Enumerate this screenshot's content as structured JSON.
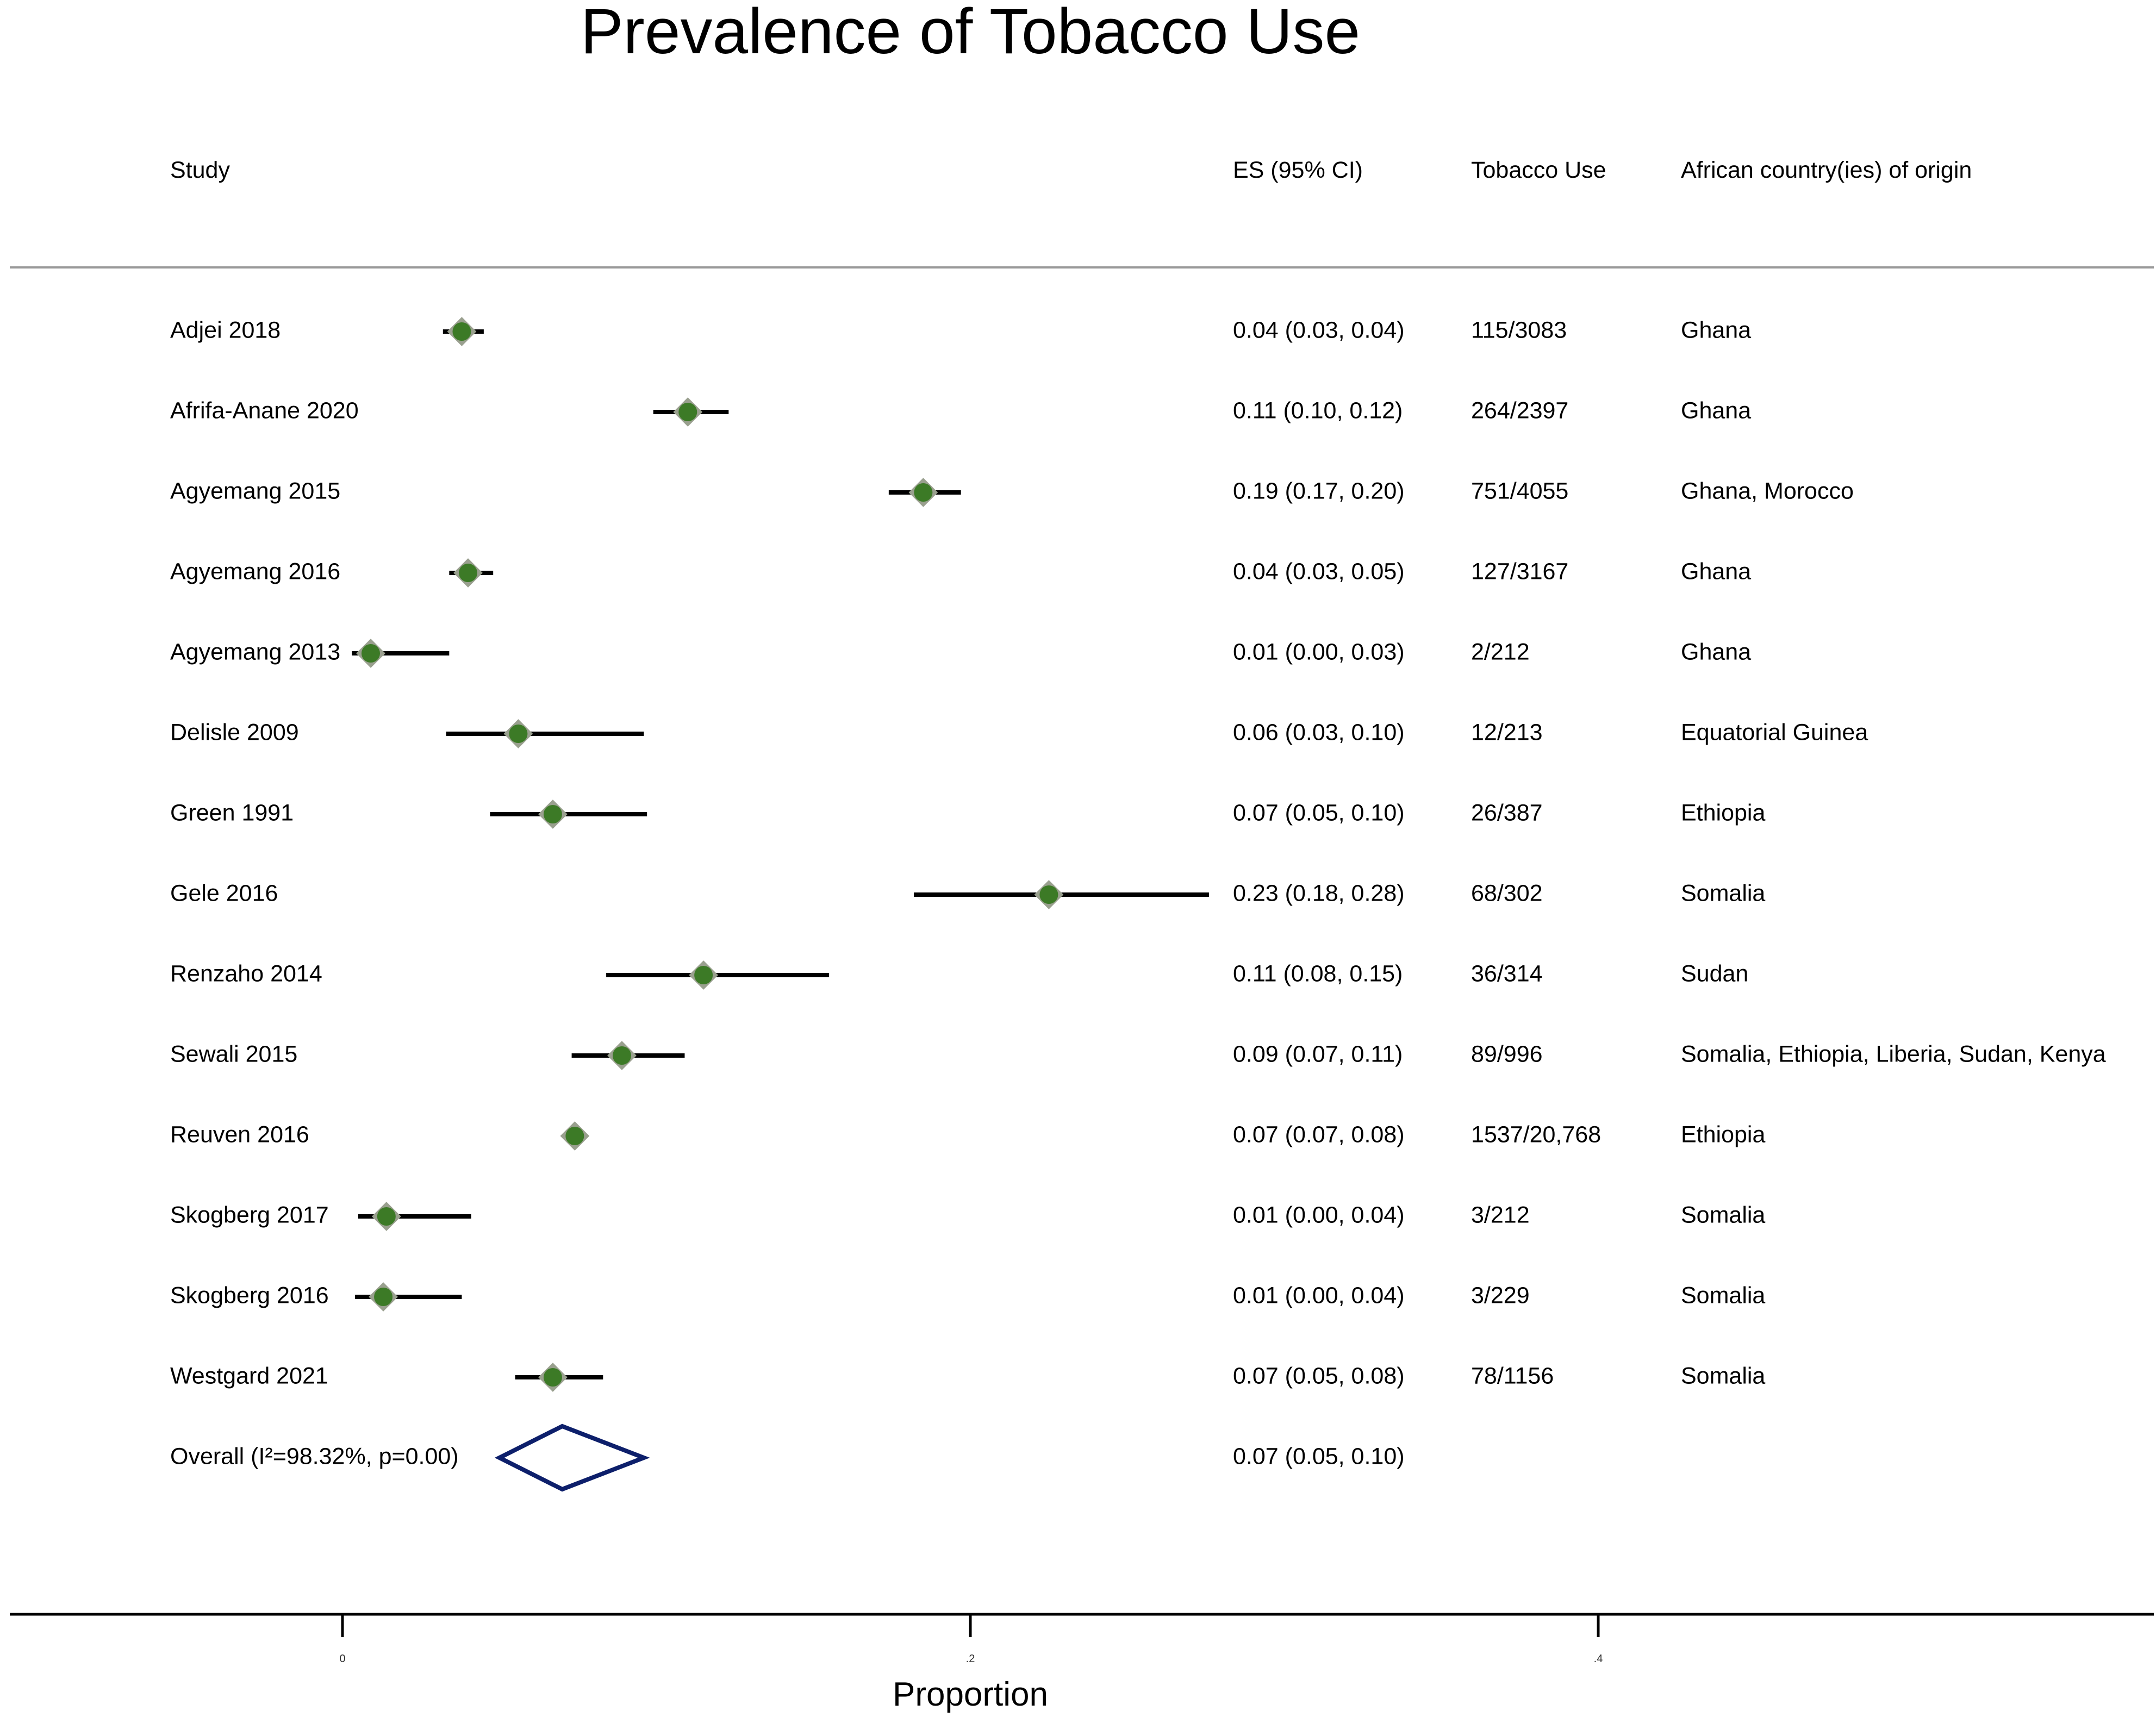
{
  "chart_data": {
    "type": "forest",
    "title": "Prevalence of Tobacco Use",
    "xlabel": "Proportion",
    "xlim": [
      -0.11,
      0.575
    ],
    "ticks": [
      {
        "value": 0,
        "label": "0"
      },
      {
        "value": 0.2,
        "label": ".2"
      },
      {
        "value": 0.4,
        "label": ".4"
      }
    ],
    "columns": {
      "study": "Study",
      "es": "ES (95% CI)",
      "events": "Tobacco Use",
      "country": "African country(ies) of origin"
    },
    "studies": [
      {
        "study": "Adjei 2018",
        "es": 0.038,
        "lo": 0.032,
        "hi": 0.045,
        "es_text": "0.04 (0.03, 0.04)",
        "events": "115/3083",
        "country": "Ghana"
      },
      {
        "study": "Afrifa-Anane 2020",
        "es": 0.11,
        "lo": 0.099,
        "hi": 0.123,
        "es_text": "0.11 (0.10, 0.12)",
        "events": "264/2397",
        "country": "Ghana"
      },
      {
        "study": "Agyemang 2015",
        "es": 0.185,
        "lo": 0.174,
        "hi": 0.197,
        "es_text": "0.19 (0.17, 0.20)",
        "events": "751/4055",
        "country": "Ghana, Morocco"
      },
      {
        "study": "Agyemang 2016",
        "es": 0.04,
        "lo": 0.034,
        "hi": 0.048,
        "es_text": "0.04 (0.03, 0.05)",
        "events": "127/3167",
        "country": "Ghana"
      },
      {
        "study": "Agyemang 2013",
        "es": 0.009,
        "lo": 0.003,
        "hi": 0.034,
        "es_text": "0.01 (0.00, 0.03)",
        "events": "2/212",
        "country": "Ghana"
      },
      {
        "study": "Delisle 2009",
        "es": 0.056,
        "lo": 0.033,
        "hi": 0.096,
        "es_text": "0.06 (0.03, 0.10)",
        "events": "12/213",
        "country": "Equatorial Guinea"
      },
      {
        "study": "Green 1991",
        "es": 0.067,
        "lo": 0.047,
        "hi": 0.097,
        "es_text": "0.07 (0.05, 0.10)",
        "events": "26/387",
        "country": "Ethiopia"
      },
      {
        "study": "Gele 2016",
        "es": 0.225,
        "lo": 0.182,
        "hi": 0.276,
        "es_text": "0.23 (0.18, 0.28)",
        "events": "68/302",
        "country": "Somalia"
      },
      {
        "study": "Renzaho 2014",
        "es": 0.115,
        "lo": 0.084,
        "hi": 0.155,
        "es_text": "0.11 (0.08, 0.15)",
        "events": "36/314",
        "country": "Sudan"
      },
      {
        "study": "Sewali 2015",
        "es": 0.089,
        "lo": 0.073,
        "hi": 0.109,
        "es_text": "0.09 (0.07, 0.11)",
        "events": "89/996",
        "country": "Somalia, Ethiopia, Liberia, Sudan, Kenya"
      },
      {
        "study": "Reuven 2016",
        "es": 0.074,
        "lo": 0.071,
        "hi": 0.078,
        "es_text": "0.07 (0.07, 0.08)",
        "events": "1537/20,768",
        "country": "Ethiopia"
      },
      {
        "study": "Skogberg 2017",
        "es": 0.014,
        "lo": 0.005,
        "hi": 0.041,
        "es_text": "0.01 (0.00, 0.04)",
        "events": "3/212",
        "country": "Somalia"
      },
      {
        "study": "Skogberg 2016",
        "es": 0.013,
        "lo": 0.004,
        "hi": 0.038,
        "es_text": "0.01 (0.00, 0.04)",
        "events": "3/229",
        "country": "Somalia"
      },
      {
        "study": "Westgard 2021",
        "es": 0.067,
        "lo": 0.055,
        "hi": 0.083,
        "es_text": "0.07 (0.05, 0.08)",
        "events": "78/1156",
        "country": "Somalia"
      }
    ],
    "overall": {
      "label": "Overall (I²=98.32%, p=0.00)",
      "es": 0.07,
      "lo": 0.05,
      "hi": 0.096,
      "es_text": "0.07 (0.05, 0.10)"
    },
    "colors": {
      "marker": "#3c7a26",
      "marker_halo": "#9aa08f",
      "ci_line": "#000000",
      "diamond": "#0d1f6b",
      "rule": "#999999",
      "axis": "#000000"
    }
  }
}
